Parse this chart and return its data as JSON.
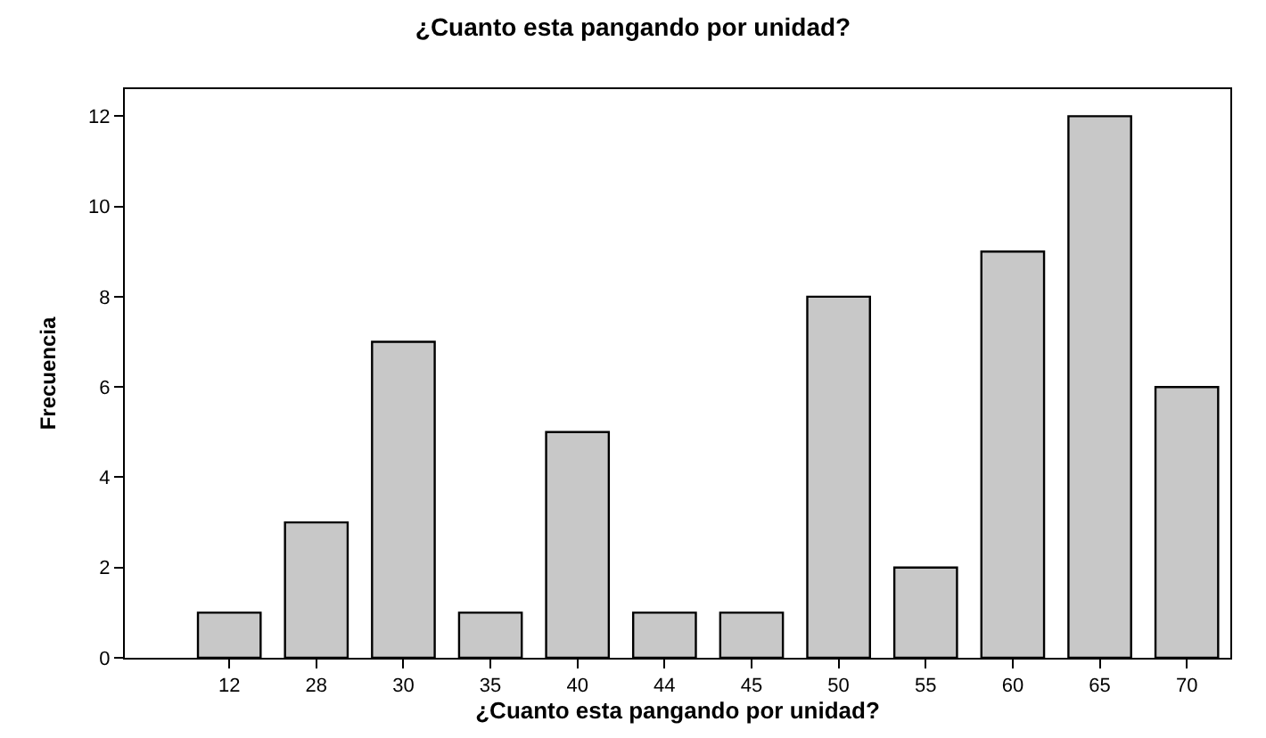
{
  "chart_data": {
    "type": "bar",
    "title": "¿Cuanto esta pangando por unidad?",
    "xlabel": "¿Cuanto esta pangando por unidad?",
    "ylabel": "Frecuencia",
    "categories": [
      "12",
      "28",
      "30",
      "35",
      "40",
      "44",
      "45",
      "50",
      "55",
      "60",
      "65",
      "70"
    ],
    "values": [
      1,
      3,
      7,
      1,
      5,
      1,
      1,
      8,
      2,
      9,
      12,
      6
    ],
    "color": "#c8c8c8",
    "ylim": [
      0,
      12.6
    ],
    "yticks": [
      0,
      2,
      4,
      6,
      8,
      10,
      12
    ]
  }
}
